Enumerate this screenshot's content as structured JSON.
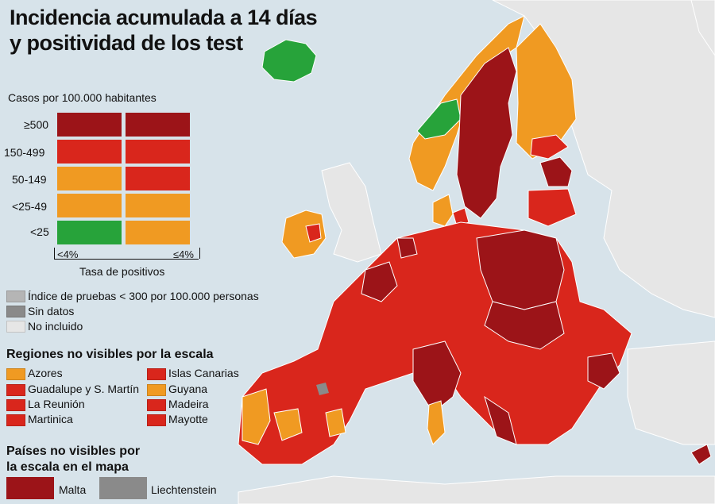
{
  "title": {
    "line1": "Incidencia acumulada a 14 días",
    "line2": "y positividad de los test"
  },
  "colors": {
    "dark_red": "#9c1418",
    "red": "#d9261c",
    "orange": "#f09a22",
    "green": "#27a33a",
    "grey_low_testing": "#b5b5b5",
    "grey_no_data": "#8a8a8a",
    "not_included": "#e6e6e6",
    "sea": "#d7e3ea"
  },
  "legend": {
    "header": "Casos por 100.000 habitantes",
    "rows": [
      {
        "label": "≥500",
        "left": "dark_red",
        "right": "dark_red"
      },
      {
        "label": "150-499",
        "left": "red",
        "right": "red"
      },
      {
        "label": "50-149",
        "left": "orange",
        "right": "red"
      },
      {
        "label": "<25-49",
        "left": "orange",
        "right": "orange"
      },
      {
        "label": "<25",
        "left": "green",
        "right": "orange"
      }
    ],
    "col_left_label": "<4%",
    "col_right_label": "≤4%",
    "x_axis_label": "Tasa de positivos"
  },
  "grey_legend": {
    "items": [
      {
        "label": "Índice de pruebas < 300 por 100.000 personas",
        "color": "grey_low_testing"
      },
      {
        "label": "Sin datos",
        "color": "grey_no_data"
      },
      {
        "label": "No incluido",
        "color": "not_included"
      }
    ]
  },
  "regions": {
    "heading": "Regiones no visibles por la escala",
    "items": [
      {
        "label": "Azores",
        "color": "orange"
      },
      {
        "label": "Islas Canarias",
        "color": "red"
      },
      {
        "label": "Guadalupe y S. Martín",
        "color": "red"
      },
      {
        "label": "Guyana",
        "color": "orange"
      },
      {
        "label": "La Reunión",
        "color": "red"
      },
      {
        "label": "Madeira",
        "color": "red"
      },
      {
        "label": "Martinica",
        "color": "red"
      },
      {
        "label": "Mayotte",
        "color": "red"
      }
    ]
  },
  "countries": {
    "heading_line1": "Países no visibles por",
    "heading_line2": "la escala en el mapa",
    "items": [
      {
        "label": "Malta",
        "color": "dark_red"
      },
      {
        "label": "Liechtenstein",
        "color": "grey_no_data"
      }
    ]
  }
}
